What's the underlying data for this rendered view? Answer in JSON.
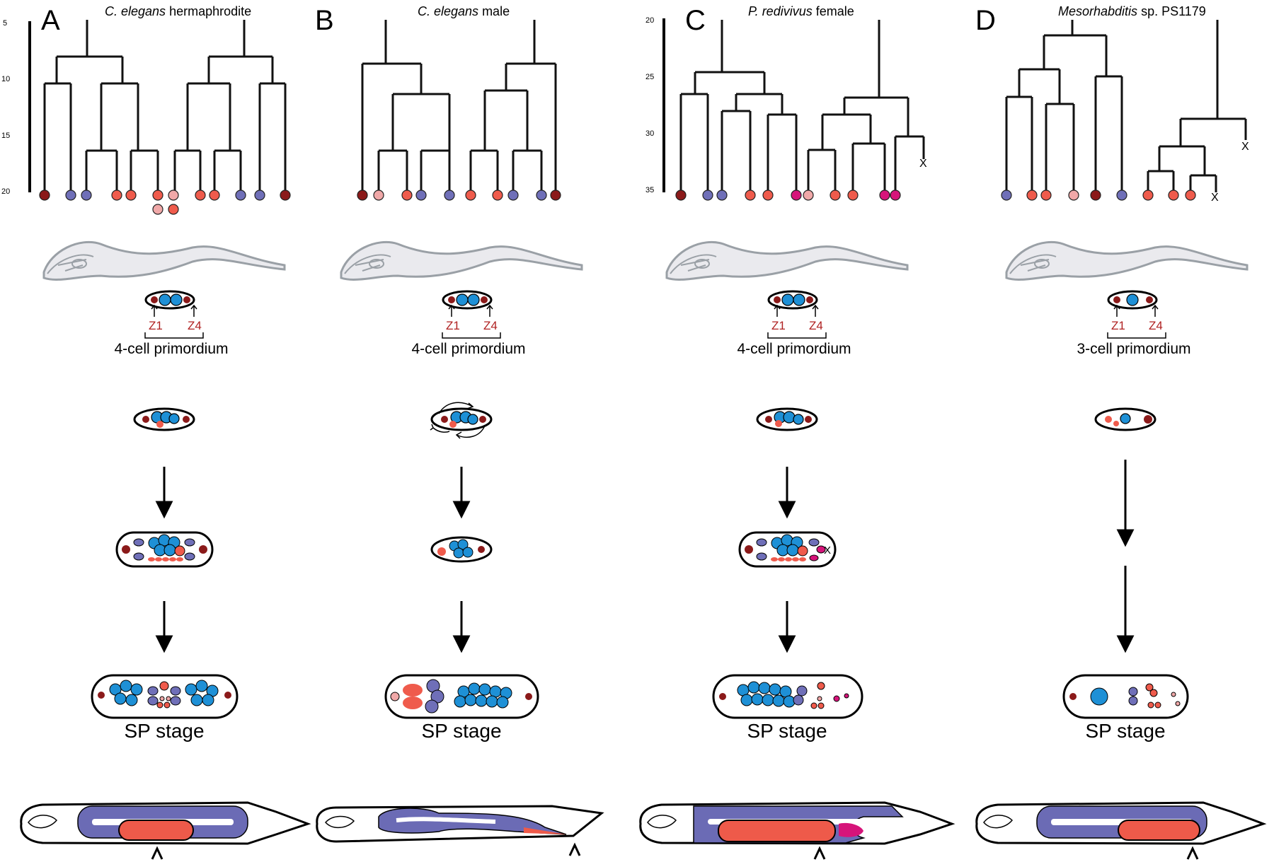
{
  "panels": [
    {
      "letter": "A",
      "title_italic": "C. elegans",
      "title_rest": " hermaphrodite",
      "primordium_label": "4-cell primordium",
      "stage_label": "SP stage",
      "z1_label": "Z1",
      "z4_label": "Z4",
      "axis_ticks": [
        "5",
        "10",
        "15",
        "20"
      ]
    },
    {
      "letter": "B",
      "title_italic": "C. elegans",
      "title_rest": " male",
      "primordium_label": "4-cell primordium",
      "stage_label": "SP stage",
      "z1_label": "Z1",
      "z4_label": "Z4",
      "axis_ticks": []
    },
    {
      "letter": "C",
      "title_italic": "P. redivivus",
      "title_rest": " female",
      "primordium_label": "4-cell primordium",
      "stage_label": "SP stage",
      "z1_label": "Z1",
      "z4_label": "Z4",
      "axis_ticks": [
        "20",
        "25",
        "30",
        "35"
      ]
    },
    {
      "letter": "D",
      "title_italic": "Mesorhabditis",
      "title_rest": " sp. PS1179",
      "primordium_label": "3-cell primordium",
      "stage_label": "SP stage",
      "z1_label": "Z1",
      "z4_label": "Z4",
      "axis_ticks": []
    }
  ],
  "death_marker": "X",
  "colors": {
    "dark_red": "#8b1a1a",
    "purple": "#6f6fb8",
    "salmon": "#ef5b4c",
    "pink": "#f0a8a8",
    "magenta": "#d6147a",
    "blue": "#1e90d6",
    "gray_outline": "#9aa0a6",
    "gonad_purple": "#6b6bb5",
    "uterus_red": "#ee5a4a"
  }
}
